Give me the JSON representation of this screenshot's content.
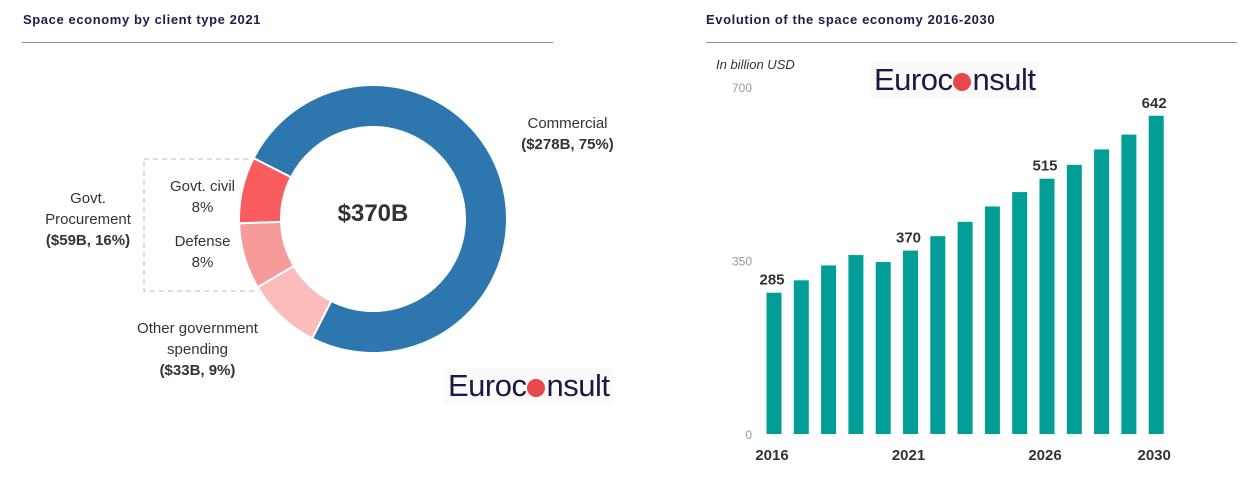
{
  "left_panel": {
    "title": "Space economy by client type 2021",
    "center_total": "$370B",
    "labels": {
      "commercial_name": "Commercial",
      "commercial_value": "($278B, 75%)",
      "procurement_name_1": "Govt.",
      "procurement_name_2": "Procurement",
      "procurement_value": "($59B, 16%)",
      "civil_name": "Govt. civil",
      "civil_pct": "8%",
      "defense_name": "Defense",
      "defense_pct": "8%",
      "other_name_1": "Other government",
      "other_name_2": "spending",
      "other_value": "($33B, 9%)"
    },
    "logo": "Euroconsult"
  },
  "right_panel": {
    "title": "Evolution of the space economy 2016-2030",
    "logo": "Euroconsult"
  },
  "chart_data": [
    {
      "type": "pie",
      "variant": "donut",
      "title": "Space economy by client type 2021",
      "total": "$370B",
      "slices": [
        {
          "name": "Commercial",
          "value_busd": 278,
          "pct": 75,
          "color": "#2e77ae"
        },
        {
          "name": "Other government spending",
          "value_busd": 33,
          "pct": 9,
          "color": "#fbbcbc"
        },
        {
          "name": "Defense",
          "pct": 8,
          "color": "#f79a9a"
        },
        {
          "name": "Govt. civil",
          "pct": 8,
          "color": "#f95c5f"
        }
      ],
      "group": {
        "name": "Govt. Procurement",
        "value_busd": 59,
        "pct": 16,
        "members": [
          "Govt. civil",
          "Defense"
        ]
      }
    },
    {
      "type": "bar",
      "title": "Evolution of the space economy 2016-2030",
      "ylabel": "In billion USD",
      "ylim": [
        0,
        700
      ],
      "yticks": [
        "0",
        "350",
        "700"
      ],
      "categories": [
        "2016",
        "2017",
        "2018",
        "2019",
        "2020",
        "2021",
        "2022",
        "2023",
        "2024",
        "2025",
        "2026",
        "2027",
        "2028",
        "2029",
        "2030"
      ],
      "xtick_labels": {
        "2016": "2016",
        "2021": "2021",
        "2026": "2026",
        "2030": "2030"
      },
      "values": [
        285,
        310,
        340,
        361,
        347,
        370,
        399,
        428,
        459,
        488,
        515,
        543,
        574,
        604,
        642
      ],
      "data_labels": {
        "2016": "285",
        "2021": "370",
        "2026": "515",
        "2030": "642"
      },
      "color": "#009e96",
      "grid": false
    }
  ]
}
